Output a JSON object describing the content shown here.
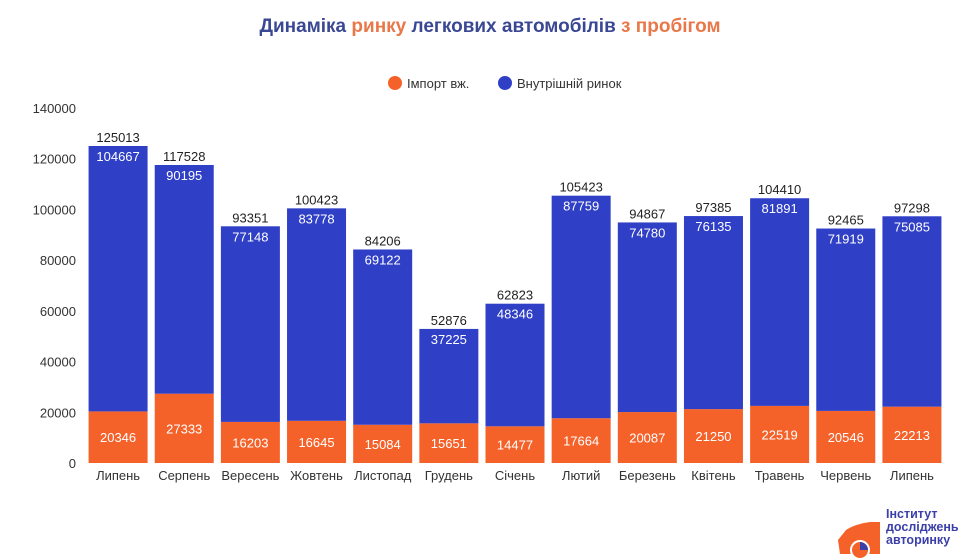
{
  "colors": {
    "title_primary": "#3a4894",
    "title_accent": "#e8784a",
    "import": "#f4622a",
    "domestic": "#2f3fc6",
    "axis_text": "#333333",
    "label_light": "#ffffff",
    "label_dark": "#222222"
  },
  "chart_data": {
    "type": "bar",
    "stacked": true,
    "title_parts": [
      {
        "text": "Динаміка ",
        "accent": false
      },
      {
        "text": "ринку ",
        "accent": true
      },
      {
        "text": "легкових автомобілів ",
        "accent": false
      },
      {
        "text": "з пробігом",
        "accent": true
      }
    ],
    "categories": [
      "Липень",
      "Серпень",
      "Вересень",
      "Жовтень",
      "Листопад",
      "Грудень",
      "Січень",
      "Лютий",
      "Березень",
      "Квітень",
      "Травень",
      "Червень",
      "Липень"
    ],
    "series": [
      {
        "name": "Імпорт вж.",
        "color": "#f4622a",
        "values": [
          20346,
          27333,
          16203,
          16645,
          15084,
          15651,
          14477,
          17664,
          20087,
          21250,
          22519,
          20546,
          22213
        ]
      },
      {
        "name": "Внутрішній ринок",
        "color": "#2f3fc6",
        "values": [
          104667,
          90195,
          77148,
          83778,
          69122,
          37225,
          48346,
          87759,
          74780,
          76135,
          81891,
          71919,
          75085
        ]
      }
    ],
    "totals": [
      125013,
      117528,
      93351,
      100423,
      84206,
      52876,
      62823,
      105423,
      94867,
      97385,
      104410,
      92465,
      97298
    ],
    "ylim": [
      0,
      140000
    ],
    "yticks": [
      0,
      20000,
      40000,
      60000,
      80000,
      100000,
      120000,
      140000
    ],
    "grid": false,
    "legend_position": "top-center"
  },
  "logo": {
    "lines": [
      "Інститут",
      "досліджень",
      "авторинку"
    ]
  }
}
